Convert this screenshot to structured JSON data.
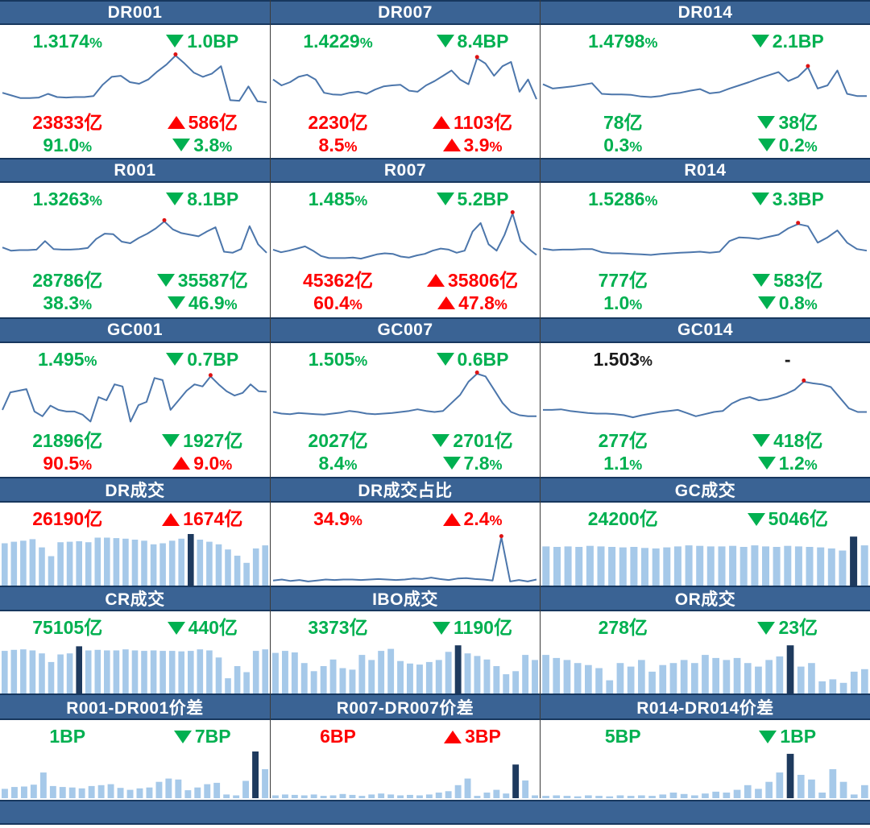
{
  "colors": {
    "header_bg": "#3A6394",
    "header_border": "#17375E",
    "green": "#00B050",
    "red": "#FE0000",
    "black": "#1A1A1A",
    "line": "#4C76AB",
    "dot": "#DE1313",
    "bar": "#A6C9E9",
    "bar_dark": "#1E3A5E",
    "divider": "#3B3B3B"
  },
  "footer": {
    "label": ""
  },
  "chart_data": [
    {
      "title": "DR001",
      "type": "line",
      "kind": "rate",
      "stats": [
        {
          "left": {
            "text": "1.3174%",
            "color": "green"
          },
          "right": {
            "dir": "down",
            "text": "1.0BP",
            "color": "green"
          }
        },
        {
          "left": {
            "text": "23833亿",
            "color": "red"
          },
          "right": {
            "dir": "up",
            "text": "586亿",
            "color": "red"
          }
        },
        {
          "left": {
            "text": "91.0%",
            "color": "green"
          },
          "right": {
            "dir": "down",
            "text": "3.8%",
            "color": "green"
          }
        }
      ],
      "values": [
        0.3,
        0.25,
        0.2,
        0.2,
        0.21,
        0.28,
        0.22,
        0.21,
        0.22,
        0.22,
        0.24,
        0.45,
        0.6,
        0.62,
        0.5,
        0.47,
        0.55,
        0.7,
        0.83,
        1.0,
        0.85,
        0.68,
        0.6,
        0.66,
        0.8,
        0.16,
        0.15,
        0.42,
        0.14,
        0.12
      ]
    },
    {
      "title": "DR007",
      "type": "line",
      "kind": "rate",
      "stats": [
        {
          "left": {
            "text": "1.4229%",
            "color": "green"
          },
          "right": {
            "dir": "down",
            "text": "8.4BP",
            "color": "green"
          }
        },
        {
          "left": {
            "text": "2230亿",
            "color": "red"
          },
          "right": {
            "dir": "up",
            "text": "1103亿",
            "color": "red"
          }
        },
        {
          "left": {
            "text": "8.5%",
            "color": "red"
          },
          "right": {
            "dir": "up",
            "text": "3.9%",
            "color": "red"
          }
        }
      ],
      "values": [
        0.55,
        0.44,
        0.5,
        0.6,
        0.64,
        0.55,
        0.3,
        0.27,
        0.26,
        0.3,
        0.32,
        0.28,
        0.36,
        0.42,
        0.44,
        0.45,
        0.34,
        0.32,
        0.44,
        0.52,
        0.62,
        0.72,
        0.55,
        0.46,
        0.95,
        0.85,
        0.62,
        0.8,
        0.88,
        0.32,
        0.55,
        0.18
      ]
    },
    {
      "title": "DR014",
      "type": "line",
      "kind": "rate",
      "stats": [
        {
          "left": {
            "text": "1.4798%",
            "color": "green"
          },
          "right": {
            "dir": "down",
            "text": "2.1BP",
            "color": "green"
          }
        },
        {
          "left": {
            "text": "78亿",
            "color": "green"
          },
          "right": {
            "dir": "down",
            "text": "38亿",
            "color": "green"
          }
        },
        {
          "left": {
            "text": "0.3%",
            "color": "green"
          },
          "right": {
            "dir": "down",
            "text": "0.2%",
            "color": "green"
          }
        }
      ],
      "values": [
        0.46,
        0.38,
        0.4,
        0.42,
        0.45,
        0.48,
        0.28,
        0.27,
        0.27,
        0.26,
        0.23,
        0.22,
        0.24,
        0.28,
        0.3,
        0.34,
        0.37,
        0.29,
        0.31,
        0.38,
        0.44,
        0.5,
        0.57,
        0.63,
        0.69,
        0.52,
        0.6,
        0.78,
        0.38,
        0.44,
        0.72,
        0.28,
        0.24,
        0.24
      ]
    },
    {
      "title": "R001",
      "type": "line",
      "kind": "rate",
      "stats": [
        {
          "left": {
            "text": "1.3263%",
            "color": "green"
          },
          "right": {
            "dir": "down",
            "text": "8.1BP",
            "color": "green"
          }
        },
        {
          "left": {
            "text": "28786亿",
            "color": "green"
          },
          "right": {
            "dir": "down",
            "text": "35587亿",
            "color": "green"
          }
        },
        {
          "left": {
            "text": "38.3%",
            "color": "green"
          },
          "right": {
            "dir": "down",
            "text": "46.9%",
            "color": "green"
          }
        }
      ],
      "values": [
        0.36,
        0.3,
        0.31,
        0.31,
        0.32,
        0.48,
        0.33,
        0.32,
        0.32,
        0.33,
        0.35,
        0.52,
        0.62,
        0.61,
        0.47,
        0.44,
        0.54,
        0.62,
        0.72,
        0.85,
        0.7,
        0.63,
        0.6,
        0.57,
        0.66,
        0.74,
        0.28,
        0.26,
        0.33,
        0.76,
        0.42,
        0.26
      ]
    },
    {
      "title": "R007",
      "type": "line",
      "kind": "rate",
      "stats": [
        {
          "left": {
            "text": "1.485%",
            "color": "green"
          },
          "right": {
            "dir": "down",
            "text": "5.2BP",
            "color": "green"
          }
        },
        {
          "left": {
            "text": "45362亿",
            "color": "red"
          },
          "right": {
            "dir": "up",
            "text": "35806亿",
            "color": "red"
          }
        },
        {
          "left": {
            "text": "60.4%",
            "color": "red"
          },
          "right": {
            "dir": "up",
            "text": "47.8%",
            "color": "red"
          }
        }
      ],
      "values": [
        0.32,
        0.27,
        0.3,
        0.34,
        0.38,
        0.3,
        0.2,
        0.16,
        0.16,
        0.16,
        0.17,
        0.15,
        0.19,
        0.23,
        0.25,
        0.24,
        0.19,
        0.17,
        0.21,
        0.24,
        0.3,
        0.34,
        0.32,
        0.26,
        0.3,
        0.66,
        0.82,
        0.42,
        0.3,
        0.6,
        1.0,
        0.48,
        0.34,
        0.22
      ]
    },
    {
      "title": "R014",
      "type": "line",
      "kind": "rate",
      "stats": [
        {
          "left": {
            "text": "1.5286%",
            "color": "green"
          },
          "right": {
            "dir": "down",
            "text": "3.3BP",
            "color": "green"
          }
        },
        {
          "left": {
            "text": "777亿",
            "color": "green"
          },
          "right": {
            "dir": "down",
            "text": "583亿",
            "color": "green"
          }
        },
        {
          "left": {
            "text": "1.0%",
            "color": "green"
          },
          "right": {
            "dir": "down",
            "text": "0.8%",
            "color": "green"
          }
        }
      ],
      "values": [
        0.34,
        0.31,
        0.32,
        0.32,
        0.33,
        0.33,
        0.27,
        0.25,
        0.25,
        0.24,
        0.23,
        0.22,
        0.24,
        0.25,
        0.26,
        0.27,
        0.28,
        0.26,
        0.28,
        0.48,
        0.55,
        0.54,
        0.52,
        0.56,
        0.6,
        0.72,
        0.8,
        0.76,
        0.45,
        0.55,
        0.68,
        0.45,
        0.33,
        0.3
      ]
    },
    {
      "title": "GC001",
      "type": "line",
      "kind": "rate",
      "stats": [
        {
          "left": {
            "text": "1.495%",
            "color": "green"
          },
          "right": {
            "dir": "down",
            "text": "0.7BP",
            "color": "green"
          }
        },
        {
          "left": {
            "text": "21896亿",
            "color": "green"
          },
          "right": {
            "dir": "down",
            "text": "1927亿",
            "color": "green"
          }
        },
        {
          "left": {
            "text": "90.5%",
            "color": "red"
          },
          "right": {
            "dir": "up",
            "text": "9.0%",
            "color": "red"
          }
        }
      ],
      "values": [
        0.32,
        0.65,
        0.68,
        0.71,
        0.29,
        0.2,
        0.4,
        0.32,
        0.29,
        0.29,
        0.23,
        0.1,
        0.56,
        0.5,
        0.8,
        0.76,
        0.1,
        0.41,
        0.47,
        0.92,
        0.88,
        0.32,
        0.5,
        0.68,
        0.8,
        0.76,
        0.95,
        0.8,
        0.67,
        0.59,
        0.64,
        0.8,
        0.67,
        0.66
      ]
    },
    {
      "title": "GC007",
      "type": "line",
      "kind": "rate",
      "stats": [
        {
          "left": {
            "text": "1.505%",
            "color": "green"
          },
          "right": {
            "dir": "down",
            "text": "0.6BP",
            "color": "green"
          }
        },
        {
          "left": {
            "text": "2027亿",
            "color": "green"
          },
          "right": {
            "dir": "down",
            "text": "2701亿",
            "color": "green"
          }
        },
        {
          "left": {
            "text": "8.4%",
            "color": "green"
          },
          "right": {
            "dir": "down",
            "text": "7.8%",
            "color": "green"
          }
        }
      ],
      "values": [
        0.28,
        0.25,
        0.24,
        0.26,
        0.25,
        0.24,
        0.23,
        0.25,
        0.27,
        0.3,
        0.28,
        0.25,
        0.24,
        0.25,
        0.26,
        0.28,
        0.3,
        0.33,
        0.3,
        0.28,
        0.3,
        0.45,
        0.6,
        0.85,
        1.0,
        0.95,
        0.7,
        0.45,
        0.28,
        0.22,
        0.2,
        0.2
      ]
    },
    {
      "title": "GC014",
      "type": "line",
      "kind": "rate",
      "stats": [
        {
          "left": {
            "text": "1.503%",
            "color": "black"
          },
          "right": {
            "dir": null,
            "text": "-",
            "color": "black"
          }
        },
        {
          "left": {
            "text": "277亿",
            "color": "green"
          },
          "right": {
            "dir": "down",
            "text": "418亿",
            "color": "green"
          }
        },
        {
          "left": {
            "text": "1.1%",
            "color": "green"
          },
          "right": {
            "dir": "down",
            "text": "1.2%",
            "color": "green"
          }
        }
      ],
      "values": [
        0.32,
        0.32,
        0.33,
        0.3,
        0.28,
        0.26,
        0.25,
        0.25,
        0.24,
        0.22,
        0.18,
        0.22,
        0.25,
        0.28,
        0.3,
        0.32,
        0.26,
        0.2,
        0.24,
        0.28,
        0.3,
        0.44,
        0.52,
        0.56,
        0.5,
        0.52,
        0.56,
        0.62,
        0.7,
        0.85,
        0.82,
        0.8,
        0.75,
        0.55,
        0.35,
        0.28,
        0.28
      ]
    },
    {
      "title": "DR成交",
      "type": "bar",
      "kind": "vol",
      "stats": [
        {
          "left": {
            "text": "26190亿",
            "color": "red"
          },
          "right": {
            "dir": "up",
            "text": "1674亿",
            "color": "red"
          }
        }
      ],
      "values": [
        0.82,
        0.85,
        0.87,
        0.9,
        0.74,
        0.57,
        0.84,
        0.85,
        0.86,
        0.84,
        0.93,
        0.93,
        0.92,
        0.91,
        0.89,
        0.87,
        0.8,
        0.82,
        0.87,
        0.91,
        1.0,
        0.89,
        0.85,
        0.8,
        0.7,
        0.58,
        0.44,
        0.72,
        0.78
      ],
      "dark": 20
    },
    {
      "title": "DR成交占比",
      "type": "line",
      "kind": "vol",
      "stats": [
        {
          "left": {
            "text": "34.9%",
            "color": "red"
          },
          "right": {
            "dir": "up",
            "text": "2.4%",
            "color": "red"
          }
        }
      ],
      "values": [
        0.07,
        0.09,
        0.06,
        0.08,
        0.05,
        0.07,
        0.09,
        0.08,
        0.09,
        0.09,
        0.08,
        0.09,
        0.1,
        0.09,
        0.08,
        0.09,
        0.11,
        0.1,
        0.13,
        0.1,
        0.08,
        0.11,
        0.12,
        0.1,
        0.09,
        0.07,
        0.95,
        0.05,
        0.08,
        0.05,
        0.09
      ]
    },
    {
      "title": "GC成交",
      "type": "bar",
      "kind": "vol",
      "stats": [
        {
          "left": {
            "text": "24200亿",
            "color": "green"
          },
          "right": {
            "dir": "down",
            "text": "5046亿",
            "color": "green"
          }
        }
      ],
      "values": [
        0.76,
        0.75,
        0.76,
        0.75,
        0.77,
        0.76,
        0.75,
        0.74,
        0.75,
        0.73,
        0.72,
        0.74,
        0.76,
        0.78,
        0.77,
        0.76,
        0.76,
        0.77,
        0.75,
        0.78,
        0.76,
        0.75,
        0.77,
        0.76,
        0.75,
        0.74,
        0.72,
        0.68,
        0.95,
        0.78
      ],
      "dark": 28
    },
    {
      "title": "CR成交",
      "type": "bar",
      "kind": "vol",
      "stats": [
        {
          "left": {
            "text": "75105亿",
            "color": "green"
          },
          "right": {
            "dir": "down",
            "text": "440亿",
            "color": "green"
          }
        }
      ],
      "values": [
        0.84,
        0.86,
        0.87,
        0.85,
        0.79,
        0.62,
        0.77,
        0.79,
        0.93,
        0.85,
        0.86,
        0.85,
        0.85,
        0.87,
        0.85,
        0.84,
        0.85,
        0.84,
        0.84,
        0.83,
        0.84,
        0.87,
        0.85,
        0.71,
        0.3,
        0.54,
        0.42,
        0.84,
        0.87
      ],
      "dark": 8
    },
    {
      "title": "IBO成交",
      "type": "bar",
      "kind": "vol",
      "stats": [
        {
          "left": {
            "text": "3373亿",
            "color": "green"
          },
          "right": {
            "dir": "down",
            "text": "1190亿",
            "color": "green"
          }
        }
      ],
      "values": [
        0.8,
        0.84,
        0.81,
        0.6,
        0.44,
        0.54,
        0.67,
        0.5,
        0.47,
        0.76,
        0.66,
        0.84,
        0.88,
        0.64,
        0.59,
        0.57,
        0.62,
        0.66,
        0.82,
        0.95,
        0.79,
        0.74,
        0.67,
        0.54,
        0.38,
        0.44,
        0.76,
        0.66
      ],
      "dark": 19
    },
    {
      "title": "OR成交",
      "type": "bar",
      "kind": "vol",
      "stats": [
        {
          "left": {
            "text": "278亿",
            "color": "green"
          },
          "right": {
            "dir": "down",
            "text": "23亿",
            "color": "green"
          }
        }
      ],
      "values": [
        0.76,
        0.7,
        0.66,
        0.6,
        0.56,
        0.5,
        0.26,
        0.6,
        0.53,
        0.66,
        0.43,
        0.56,
        0.6,
        0.66,
        0.6,
        0.76,
        0.7,
        0.66,
        0.7,
        0.6,
        0.53,
        0.66,
        0.73,
        0.95,
        0.53,
        0.6,
        0.24,
        0.28,
        0.21,
        0.43,
        0.48
      ],
      "dark": 23
    },
    {
      "title": "R001-DR001价差",
      "type": "bar",
      "kind": "vol",
      "stats": [
        {
          "left": {
            "text": "1BP",
            "color": "green"
          },
          "right": {
            "dir": "down",
            "text": "7BP",
            "color": "green"
          }
        }
      ],
      "values": [
        0.2,
        0.24,
        0.25,
        0.29,
        0.55,
        0.26,
        0.24,
        0.23,
        0.21,
        0.26,
        0.28,
        0.3,
        0.22,
        0.18,
        0.21,
        0.23,
        0.35,
        0.42,
        0.4,
        0.17,
        0.23,
        0.3,
        0.33,
        0.08,
        0.06,
        0.37,
        1.0,
        0.62
      ],
      "dark": 26
    },
    {
      "title": "R007-DR007价差",
      "type": "bar",
      "kind": "vol",
      "stats": [
        {
          "left": {
            "text": "6BP",
            "color": "red"
          },
          "right": {
            "dir": "up",
            "text": "3BP",
            "color": "red"
          }
        }
      ],
      "values": [
        0.06,
        0.08,
        0.07,
        0.06,
        0.08,
        0.05,
        0.06,
        0.09,
        0.07,
        0.05,
        0.08,
        0.1,
        0.08,
        0.06,
        0.07,
        0.06,
        0.08,
        0.12,
        0.15,
        0.28,
        0.42,
        0.05,
        0.12,
        0.18,
        0.1,
        0.72,
        0.38,
        0.06
      ],
      "dark": 25
    },
    {
      "title": "R014-DR014价差",
      "type": "bar",
      "kind": "vol",
      "stats": [
        {
          "left": {
            "text": "5BP",
            "color": "green"
          },
          "right": {
            "dir": "down",
            "text": "1BP",
            "color": "green"
          }
        }
      ],
      "values": [
        0.05,
        0.06,
        0.05,
        0.04,
        0.06,
        0.05,
        0.04,
        0.06,
        0.05,
        0.06,
        0.05,
        0.08,
        0.12,
        0.09,
        0.06,
        0.1,
        0.14,
        0.12,
        0.18,
        0.28,
        0.2,
        0.35,
        0.55,
        0.95,
        0.5,
        0.4,
        0.12,
        0.62,
        0.35,
        0.08,
        0.28
      ],
      "dark": 23
    }
  ]
}
